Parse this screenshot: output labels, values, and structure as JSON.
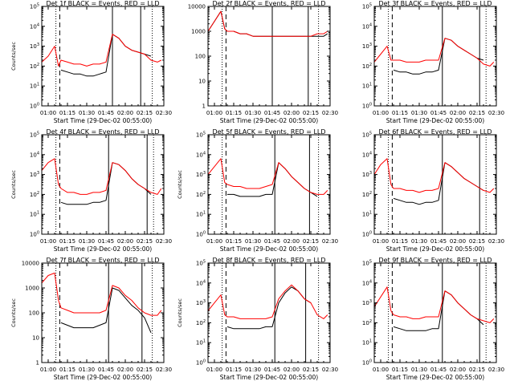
{
  "figure": {
    "xaxis_title": "Start Time (29-Dec-02 00:55:00)",
    "yaxis_title": "Counts/sec",
    "xtick_labels": [
      "01:00",
      "01:15",
      "01:30",
      "01:45",
      "02:00",
      "02:15",
      "02:30"
    ],
    "colors": {
      "events": "#000000",
      "lld": "#ff0000",
      "axes": "#000000",
      "background": "#ffffff"
    },
    "legend_text": "BLACK = Events, RED = LLD"
  },
  "chart_data": [
    {
      "type": "line",
      "title": "Det 1f BLACK = Events, RED = LLD",
      "xlabel": "Start Time (29-Dec-02 00:55:00)",
      "ylabel": "Counts/sec",
      "yscale": "log",
      "ylim_exp": [
        0,
        5
      ],
      "ytick_labels": [
        "10^0",
        "10^1",
        "10^2",
        "10^3",
        "10^4",
        "10^5"
      ],
      "x_minutes": [
        0,
        5,
        10,
        13,
        15,
        20,
        25,
        30,
        35,
        40,
        45,
        50,
        55,
        60,
        65,
        70,
        75,
        80,
        85,
        90,
        93
      ],
      "series": [
        {
          "name": "BLACK = Events",
          "log10": [
            null,
            null,
            null,
            null,
            1.8,
            1.7,
            1.6,
            1.6,
            1.5,
            1.5,
            1.6,
            1.7,
            3.6,
            3.4,
            3.0,
            2.8,
            2.7,
            2.6,
            2.5,
            null,
            null
          ]
        },
        {
          "name": "RED = LLD",
          "log10": [
            2.2,
            2.5,
            3.0,
            2.0,
            2.3,
            2.2,
            2.1,
            2.1,
            2.0,
            2.1,
            2.1,
            2.2,
            3.6,
            3.4,
            3.0,
            2.8,
            2.7,
            2.6,
            2.3,
            2.2,
            2.3
          ]
        }
      ],
      "vlines_minutes": [
        {
          "x": 11,
          "style": "dotted"
        },
        {
          "x": 14,
          "style": "dashed"
        },
        {
          "x": 55,
          "style": "solid"
        },
        {
          "x": 77,
          "style": "solid"
        },
        {
          "x": 86,
          "style": "dotted"
        }
      ]
    },
    {
      "type": "line",
      "title": "Det 2f BLACK = Events, RED = LLD",
      "xlabel": "Start Time (29-Dec-02 00:55:00)",
      "ylabel": "",
      "yscale": "log",
      "ylim_exp": [
        0,
        4
      ],
      "ytick_labels": [
        "1",
        "10",
        "100",
        "1000",
        "10000"
      ],
      "x_minutes": [
        0,
        5,
        10,
        13,
        15,
        20,
        25,
        30,
        35,
        40,
        45,
        50,
        55,
        60,
        65,
        70,
        75,
        80,
        85,
        90,
        93
      ],
      "series": [
        {
          "name": "BLACK = Events",
          "log10": [
            3.0,
            3.4,
            3.8,
            3.1,
            3.0,
            3.0,
            2.9,
            2.9,
            2.8,
            2.8,
            2.8,
            2.8,
            2.8,
            2.8,
            2.8,
            2.8,
            2.8,
            2.8,
            2.8,
            2.8,
            2.9
          ]
        },
        {
          "name": "RED = LLD",
          "log10": [
            3.0,
            3.4,
            3.8,
            3.1,
            3.0,
            3.0,
            2.9,
            2.9,
            2.8,
            2.8,
            2.8,
            2.8,
            2.8,
            2.8,
            2.8,
            2.8,
            2.8,
            2.8,
            2.9,
            2.9,
            3.0
          ]
        }
      ],
      "vlines_minutes": [
        {
          "x": 11,
          "style": "dotted"
        },
        {
          "x": 14,
          "style": "dashed"
        },
        {
          "x": 50,
          "style": "solid"
        },
        {
          "x": 78,
          "style": "solid"
        },
        {
          "x": 86,
          "style": "dotted"
        }
      ]
    },
    {
      "type": "line",
      "title": "Det 3f BLACK = Events, RED = LLD",
      "xlabel": "Start Time (29-Dec-02 00:55:00)",
      "ylabel": "",
      "yscale": "log",
      "ylim_exp": [
        0,
        5
      ],
      "ytick_labels": [
        "10^0",
        "10^1",
        "10^2",
        "10^3",
        "10^4",
        "10^5"
      ],
      "x_minutes": [
        0,
        5,
        10,
        13,
        15,
        20,
        25,
        30,
        35,
        40,
        45,
        50,
        55,
        60,
        65,
        70,
        75,
        80,
        85,
        90,
        93
      ],
      "series": [
        {
          "name": "BLACK = Events",
          "log10": [
            null,
            null,
            null,
            null,
            1.8,
            1.7,
            1.7,
            1.6,
            1.6,
            1.7,
            1.7,
            1.8,
            3.4,
            3.3,
            3.0,
            2.8,
            2.6,
            2.4,
            2.3,
            null,
            null
          ]
        },
        {
          "name": "RED = LLD",
          "log10": [
            2.2,
            2.6,
            3.0,
            2.3,
            2.3,
            2.3,
            2.2,
            2.2,
            2.2,
            2.3,
            2.3,
            2.3,
            3.4,
            3.3,
            3.0,
            2.8,
            2.6,
            2.4,
            2.1,
            2.0,
            2.2
          ]
        }
      ],
      "vlines_minutes": [
        {
          "x": 11,
          "style": "dotted"
        },
        {
          "x": 14,
          "style": "dashed"
        },
        {
          "x": 53,
          "style": "solid"
        },
        {
          "x": 82,
          "style": "solid"
        },
        {
          "x": 87,
          "style": "dotted"
        }
      ]
    },
    {
      "type": "line",
      "title": "Det 4f BLACK = Events, RED = LLD",
      "xlabel": "Start Time (29-Dec-02 00:55:00)",
      "ylabel": "Counts/sec",
      "yscale": "log",
      "ylim_exp": [
        0,
        5
      ],
      "ytick_labels": [
        "10^0",
        "10^1",
        "10^2",
        "10^3",
        "10^4",
        "10^5"
      ],
      "x_minutes": [
        0,
        5,
        10,
        13,
        15,
        20,
        25,
        30,
        35,
        40,
        45,
        50,
        55,
        60,
        65,
        70,
        75,
        80,
        85,
        90,
        93
      ],
      "series": [
        {
          "name": "BLACK = Events",
          "log10": [
            null,
            null,
            null,
            null,
            1.6,
            1.5,
            1.5,
            1.5,
            1.5,
            1.6,
            1.6,
            1.7,
            3.6,
            3.5,
            3.2,
            2.8,
            2.5,
            2.3,
            2.0,
            null,
            null
          ]
        },
        {
          "name": "RED = LLD",
          "log10": [
            3.2,
            3.6,
            3.8,
            2.5,
            2.3,
            2.1,
            2.1,
            2.0,
            2.0,
            2.1,
            2.1,
            2.2,
            3.6,
            3.5,
            3.2,
            2.8,
            2.5,
            2.3,
            2.1,
            2.0,
            2.3
          ]
        }
      ],
      "vlines_minutes": [
        {
          "x": 11,
          "style": "dotted"
        },
        {
          "x": 14,
          "style": "dashed"
        },
        {
          "x": 52,
          "style": "solid"
        },
        {
          "x": 82,
          "style": "solid"
        },
        {
          "x": 87,
          "style": "dotted"
        }
      ]
    },
    {
      "type": "line",
      "title": "Det 5f BLACK = Events, RED = LLD",
      "xlabel": "Start Time (29-Dec-02 00:55:00)",
      "ylabel": "Counts/sec",
      "yscale": "log",
      "ylim_exp": [
        0,
        5
      ],
      "ytick_labels": [
        "10^0",
        "10^1",
        "10^2",
        "10^3",
        "10^4",
        "10^5"
      ],
      "x_minutes": [
        0,
        5,
        10,
        13,
        15,
        20,
        25,
        30,
        35,
        40,
        45,
        50,
        55,
        60,
        65,
        70,
        75,
        80,
        85,
        90,
        93
      ],
      "series": [
        {
          "name": "BLACK = Events",
          "log10": [
            null,
            null,
            null,
            null,
            2.0,
            2.0,
            1.9,
            1.9,
            1.9,
            1.9,
            2.0,
            2.0,
            3.6,
            3.3,
            2.9,
            2.6,
            2.3,
            2.1,
            1.9,
            null,
            null
          ]
        },
        {
          "name": "RED = LLD",
          "log10": [
            3.0,
            3.4,
            3.8,
            2.6,
            2.5,
            2.4,
            2.4,
            2.3,
            2.3,
            2.3,
            2.4,
            2.5,
            3.6,
            3.3,
            2.9,
            2.6,
            2.3,
            2.1,
            2.0,
            2.0,
            2.2
          ]
        }
      ],
      "vlines_minutes": [
        {
          "x": 11,
          "style": "dotted"
        },
        {
          "x": 14,
          "style": "dashed"
        },
        {
          "x": 52,
          "style": "solid"
        },
        {
          "x": 79,
          "style": "solid"
        },
        {
          "x": 86,
          "style": "dotted"
        }
      ]
    },
    {
      "type": "line",
      "title": "Det 6f BLACK = Events, RED = LLD",
      "xlabel": "Start Time (29-Dec-02 00:55:00)",
      "ylabel": "",
      "yscale": "log",
      "ylim_exp": [
        0,
        5
      ],
      "ytick_labels": [
        "10^0",
        "10^1",
        "10^2",
        "10^3",
        "10^4",
        "10^5"
      ],
      "x_minutes": [
        0,
        5,
        10,
        13,
        15,
        20,
        25,
        30,
        35,
        40,
        45,
        50,
        55,
        60,
        65,
        70,
        75,
        80,
        85,
        90,
        93
      ],
      "series": [
        {
          "name": "BLACK = Events",
          "log10": [
            null,
            null,
            null,
            null,
            1.8,
            1.7,
            1.6,
            1.6,
            1.5,
            1.6,
            1.6,
            1.7,
            3.6,
            3.4,
            3.1,
            2.8,
            2.6,
            2.4,
            2.2,
            null,
            null
          ]
        },
        {
          "name": "RED = LLD",
          "log10": [
            3.0,
            3.5,
            3.8,
            2.5,
            2.3,
            2.3,
            2.2,
            2.2,
            2.1,
            2.2,
            2.2,
            2.3,
            3.6,
            3.4,
            3.1,
            2.8,
            2.6,
            2.4,
            2.2,
            2.1,
            2.3
          ]
        }
      ],
      "vlines_minutes": [
        {
          "x": 11,
          "style": "dotted"
        },
        {
          "x": 14,
          "style": "dashed"
        },
        {
          "x": 53,
          "style": "solid"
        },
        {
          "x": 82,
          "style": "solid"
        },
        {
          "x": 87,
          "style": "dotted"
        }
      ]
    },
    {
      "type": "line",
      "title": "Det 7f BLACK = Events, RED = LLD",
      "xlabel": "Start Time (29-Dec-02 00:55:00)",
      "ylabel": "Counts/sec",
      "yscale": "log",
      "ylim_exp": [
        0,
        4
      ],
      "ytick_labels": [
        "1",
        "10",
        "100",
        "1000",
        "10000"
      ],
      "x_minutes": [
        0,
        5,
        10,
        13,
        15,
        20,
        25,
        30,
        35,
        40,
        45,
        50,
        55,
        60,
        65,
        70,
        75,
        80,
        85,
        90,
        93
      ],
      "series": [
        {
          "name": "BLACK = Events",
          "log10": [
            null,
            null,
            null,
            null,
            1.6,
            1.5,
            1.4,
            1.4,
            1.4,
            1.4,
            1.5,
            1.6,
            3.0,
            2.9,
            2.6,
            2.3,
            2.1,
            1.8,
            1.2,
            null,
            null
          ]
        },
        {
          "name": "RED = LLD",
          "log10": [
            3.2,
            3.5,
            3.6,
            2.5,
            2.2,
            2.1,
            2.0,
            2.0,
            2.0,
            2.0,
            2.0,
            2.1,
            3.1,
            3.0,
            2.7,
            2.5,
            2.2,
            2.0,
            1.9,
            1.9,
            2.1
          ]
        }
      ],
      "vlines_minutes": [
        {
          "x": 11,
          "style": "dotted"
        },
        {
          "x": 14,
          "style": "dashed"
        },
        {
          "x": 52,
          "style": "solid"
        },
        {
          "x": 78,
          "style": "solid"
        },
        {
          "x": 86,
          "style": "dotted"
        }
      ]
    },
    {
      "type": "line",
      "title": "Det 8f BLACK = Events, RED = LLD",
      "xlabel": "Start Time (29-Dec-02 00:55:00)",
      "ylabel": "Counts/sec",
      "yscale": "log",
      "ylim_exp": [
        0,
        5
      ],
      "ytick_labels": [
        "10^0",
        "10^1",
        "10^2",
        "10^3",
        "10^4",
        "10^5"
      ],
      "x_minutes": [
        0,
        5,
        10,
        13,
        15,
        20,
        25,
        30,
        35,
        40,
        45,
        50,
        55,
        60,
        65,
        70,
        75,
        80,
        85,
        90,
        93
      ],
      "series": [
        {
          "name": "BLACK = Events",
          "log10": [
            null,
            null,
            null,
            null,
            1.8,
            1.7,
            1.7,
            1.7,
            1.7,
            1.7,
            1.8,
            1.8,
            3.0,
            3.5,
            3.8,
            3.6,
            3.2,
            3.0,
            null,
            null,
            null
          ]
        },
        {
          "name": "RED = LLD",
          "log10": [
            2.6,
            3.0,
            3.4,
            2.4,
            2.3,
            2.3,
            2.2,
            2.2,
            2.2,
            2.2,
            2.2,
            2.3,
            3.2,
            3.6,
            3.9,
            3.6,
            3.2,
            3.0,
            2.4,
            2.2,
            2.4
          ]
        }
      ],
      "vlines_minutes": [
        {
          "x": 11,
          "style": "dotted"
        },
        {
          "x": 14,
          "style": "dashed"
        },
        {
          "x": 52,
          "style": "solid"
        },
        {
          "x": 76,
          "style": "solid"
        },
        {
          "x": 86,
          "style": "dotted"
        }
      ]
    },
    {
      "type": "line",
      "title": "Det 9f BLACK = Events, RED = LLD",
      "xlabel": "Start Time (29-Dec-02 00:55:00)",
      "ylabel": "",
      "yscale": "log",
      "ylim_exp": [
        0,
        5
      ],
      "ytick_labels": [
        "10^0",
        "10^1",
        "10^2",
        "10^3",
        "10^4",
        "10^5"
      ],
      "x_minutes": [
        0,
        5,
        10,
        13,
        15,
        20,
        25,
        30,
        35,
        40,
        45,
        50,
        55,
        60,
        65,
        70,
        75,
        80,
        85,
        90,
        93
      ],
      "series": [
        {
          "name": "BLACK = Events",
          "log10": [
            null,
            null,
            null,
            null,
            1.8,
            1.7,
            1.6,
            1.6,
            1.6,
            1.6,
            1.7,
            1.7,
            3.6,
            3.4,
            3.0,
            2.7,
            2.4,
            2.2,
            1.9,
            null,
            null
          ]
        },
        {
          "name": "RED = LLD",
          "log10": [
            2.8,
            3.3,
            3.8,
            2.6,
            2.4,
            2.3,
            2.3,
            2.2,
            2.2,
            2.3,
            2.3,
            2.3,
            3.6,
            3.4,
            3.0,
            2.7,
            2.4,
            2.2,
            2.1,
            2.0,
            2.2
          ]
        }
      ],
      "vlines_minutes": [
        {
          "x": 11,
          "style": "dotted"
        },
        {
          "x": 14,
          "style": "dashed"
        },
        {
          "x": 53,
          "style": "solid"
        },
        {
          "x": 82,
          "style": "solid"
        },
        {
          "x": 87,
          "style": "dotted"
        }
      ]
    }
  ]
}
